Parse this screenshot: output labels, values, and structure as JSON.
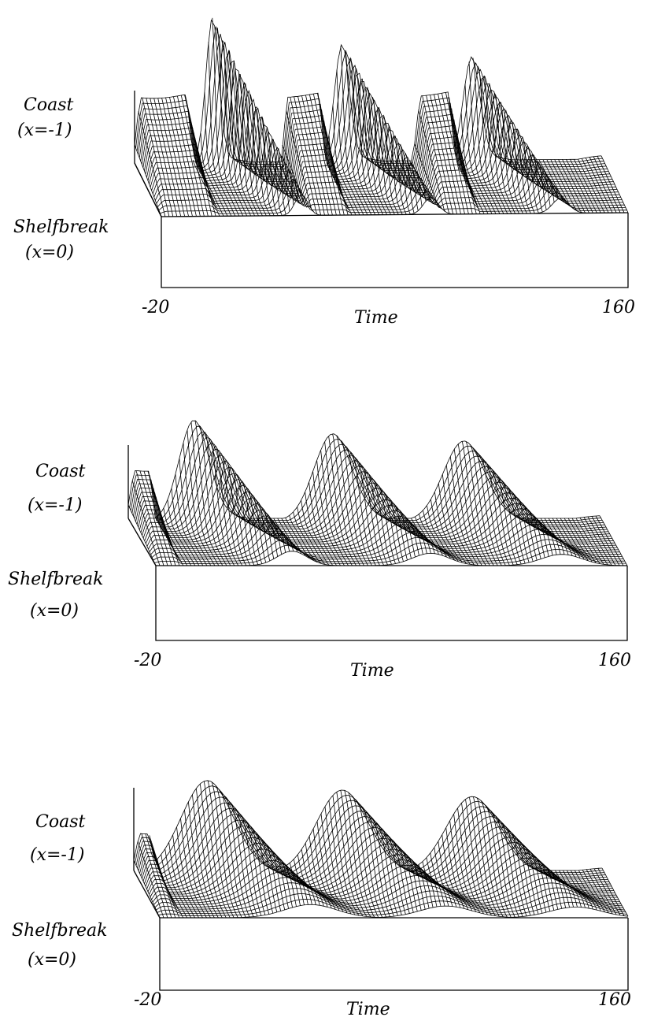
{
  "panels": [
    {
      "coast_label": "Coast",
      "coast_x_label": "(x=-1)",
      "shelf_label": "Shelfbreak",
      "shelf_x_label": "(x=0)",
      "t_min_label": "-20",
      "t_max_label": "160",
      "time_label": "Time",
      "surface": {
        "peaks": [
          {
            "t": 10,
            "a": 1.55,
            "w": 3.5,
            "slope": 0.8
          },
          {
            "t": 60,
            "a": 1.25,
            "w": 4.0,
            "slope": 0.8
          },
          {
            "t": 110,
            "a": 1.1,
            "w": 4.5,
            "slope": 0.8
          }
        ],
        "plateaus": [
          {
            "t0": -20,
            "t1": 2,
            "h": 0.75
          },
          {
            "t0": 37,
            "t1": 53,
            "h": 0.75
          },
          {
            "t0": 88,
            "t1": 103,
            "h": 0.75
          }
        ],
        "sharpness": "high"
      }
    },
    {
      "coast_label": "Coast",
      "coast_x_label": "(x=-1)",
      "shelf_label": "Shelfbreak",
      "shelf_x_label": "(x=0)",
      "t_min_label": "-20",
      "t_max_label": "160",
      "time_label": "Time",
      "surface": {
        "peaks": [
          {
            "t": 5,
            "a": 1.35,
            "w": 8,
            "slope": 0.9
          },
          {
            "t": 58,
            "a": 1.15,
            "w": 10,
            "slope": 0.9
          },
          {
            "t": 108,
            "a": 1.05,
            "w": 11,
            "slope": 0.9
          }
        ],
        "plateaus": [
          {
            "t0": -20,
            "t1": -10,
            "h": 0.7
          }
        ],
        "sharpness": "medium"
      }
    },
    {
      "coast_label": "Coast",
      "coast_x_label": "(x=-1)",
      "shelf_label": "Shelfbreak",
      "shelf_x_label": "(x=0)",
      "t_min_label": "-20",
      "t_max_label": "160",
      "time_label": "Time",
      "surface": {
        "peaks": [
          {
            "t": 8,
            "a": 1.35,
            "w": 14,
            "slope": 1.0
          },
          {
            "t": 60,
            "a": 1.2,
            "w": 14,
            "slope": 1.0
          },
          {
            "t": 110,
            "a": 1.1,
            "w": 14,
            "slope": 1.0
          }
        ],
        "plateaus": [
          {
            "t0": -20,
            "t1": -12,
            "h": 0.6
          }
        ],
        "sharpness": "low"
      }
    }
  ]
}
